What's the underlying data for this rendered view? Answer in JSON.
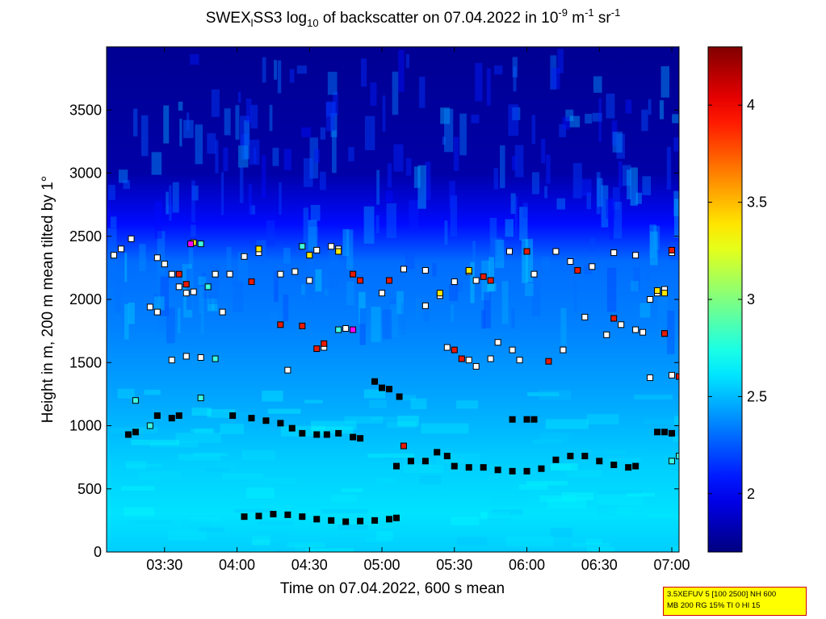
{
  "header": {
    "title_prefix": "SWEX",
    "title_sub1": "l",
    "title_mid": "SS3 log",
    "title_sub2": "10",
    "title_after": " of backscatter on 07.04.2022 in 10",
    "title_sup1": "-9",
    "title_units1": " m",
    "title_sup2": "-1",
    "title_units2": " sr",
    "title_sup3": "-1"
  },
  "info_box": {
    "line1": "3.5XEFUV 5 [100 2500] NH 600",
    "line2": "MB 200 RG 15% TI 0 HI 15"
  },
  "chart_data": {
    "type": "heatmap",
    "xlabel": "Time on 07.04.2022, 600 s mean",
    "ylabel": "Height in m, 200 m mean tilted by 1°",
    "x_range_hours": [
      3.1,
      7.05
    ],
    "ylim": [
      0,
      4000
    ],
    "x_ticks": [
      {
        "hour": 3.5,
        "label": "03:30"
      },
      {
        "hour": 4.0,
        "label": "04:00"
      },
      {
        "hour": 4.5,
        "label": "04:30"
      },
      {
        "hour": 5.0,
        "label": "05:00"
      },
      {
        "hour": 5.5,
        "label": "05:30"
      },
      {
        "hour": 6.0,
        "label": "06:00"
      },
      {
        "hour": 6.5,
        "label": "06:30"
      },
      {
        "hour": 7.0,
        "label": "07:00"
      }
    ],
    "y_ticks": [
      0,
      500,
      1000,
      1500,
      2000,
      2500,
      3000,
      3500
    ],
    "colorbar": {
      "range": [
        1.7,
        4.3
      ],
      "ticks": [
        2,
        2.5,
        3,
        3.5,
        4
      ],
      "colormap": "jet"
    },
    "background_profile": [
      {
        "height": 0,
        "value": 2.55
      },
      {
        "height": 300,
        "value": 2.6
      },
      {
        "height": 700,
        "value": 2.55
      },
      {
        "height": 1200,
        "value": 2.45
      },
      {
        "height": 1800,
        "value": 2.35
      },
      {
        "height": 2300,
        "value": 2.3
      },
      {
        "height": 2600,
        "value": 2.05
      },
      {
        "height": 3000,
        "value": 1.8
      },
      {
        "height": 4000,
        "value": 1.75
      }
    ],
    "layers": [
      {
        "name": "surface",
        "color": "#000000",
        "points": [
          [
            4.05,
            280
          ],
          [
            4.15,
            285
          ],
          [
            4.25,
            300
          ],
          [
            4.35,
            295
          ],
          [
            4.45,
            280
          ],
          [
            4.55,
            260
          ],
          [
            4.65,
            250
          ],
          [
            4.75,
            240
          ],
          [
            4.85,
            245
          ],
          [
            4.95,
            250
          ],
          [
            5.05,
            260
          ],
          [
            5.1,
            270
          ]
        ]
      },
      {
        "name": "lower",
        "color": "#000000",
        "points": [
          [
            5.1,
            680
          ],
          [
            5.2,
            720
          ],
          [
            5.3,
            720
          ],
          [
            5.38,
            790
          ],
          [
            5.45,
            760
          ],
          [
            5.5,
            680
          ],
          [
            5.6,
            670
          ],
          [
            5.7,
            670
          ],
          [
            5.8,
            650
          ],
          [
            5.9,
            640
          ],
          [
            6.0,
            640
          ],
          [
            6.1,
            660
          ],
          [
            6.2,
            730
          ],
          [
            6.3,
            760
          ],
          [
            6.4,
            760
          ],
          [
            6.5,
            720
          ],
          [
            6.6,
            690
          ],
          [
            6.7,
            670
          ],
          [
            6.75,
            680
          ]
        ]
      },
      {
        "name": "mid",
        "color": "#000000",
        "points": [
          [
            3.25,
            930
          ],
          [
            3.3,
            950
          ],
          [
            3.45,
            1080
          ],
          [
            3.55,
            1060
          ],
          [
            3.6,
            1080
          ],
          [
            3.97,
            1080
          ],
          [
            4.1,
            1060
          ],
          [
            4.2,
            1040
          ],
          [
            4.3,
            1020
          ],
          [
            4.38,
            980
          ],
          [
            4.45,
            940
          ],
          [
            4.55,
            930
          ],
          [
            4.62,
            930
          ],
          [
            4.7,
            940
          ],
          [
            4.8,
            910
          ],
          [
            4.85,
            900
          ]
        ]
      },
      {
        "name": "mid-east",
        "color": "#000000",
        "points": [
          [
            5.0,
            1300
          ],
          [
            4.95,
            1350
          ],
          [
            5.05,
            1290
          ],
          [
            5.12,
            1230
          ],
          [
            5.9,
            1050
          ],
          [
            6.0,
            1050
          ],
          [
            6.05,
            1050
          ],
          [
            6.9,
            950
          ],
          [
            6.95,
            950
          ],
          [
            7.0,
            940
          ]
        ]
      },
      {
        "name": "upper",
        "color": "#ffffff",
        "points": [
          [
            3.15,
            2350
          ],
          [
            3.2,
            2400
          ],
          [
            3.27,
            2480
          ],
          [
            3.45,
            2330
          ],
          [
            3.5,
            2280
          ],
          [
            3.55,
            2200
          ],
          [
            3.6,
            2100
          ],
          [
            3.65,
            2050
          ],
          [
            3.7,
            2060
          ],
          [
            3.85,
            2200
          ],
          [
            3.95,
            2200
          ],
          [
            4.05,
            2340
          ],
          [
            4.15,
            2370
          ],
          [
            4.3,
            2200
          ],
          [
            4.4,
            2220
          ],
          [
            4.5,
            2150
          ],
          [
            4.55,
            2390
          ],
          [
            4.65,
            2420
          ],
          [
            4.7,
            2400
          ],
          [
            5.0,
            2050
          ],
          [
            5.15,
            2240
          ],
          [
            5.3,
            2230
          ],
          [
            5.4,
            2030
          ],
          [
            5.5,
            2140
          ],
          [
            5.6,
            2220
          ],
          [
            5.65,
            2150
          ],
          [
            5.88,
            2380
          ],
          [
            6.05,
            2200
          ],
          [
            6.2,
            2380
          ],
          [
            6.3,
            2300
          ],
          [
            6.45,
            2260
          ],
          [
            6.6,
            2370
          ],
          [
            6.75,
            2350
          ],
          [
            6.85,
            2000
          ],
          [
            6.9,
            2050
          ],
          [
            6.95,
            2080
          ],
          [
            7.0,
            2370
          ]
        ]
      },
      {
        "name": "upper-mid",
        "color": "#ffffff",
        "points": [
          [
            3.4,
            1940
          ],
          [
            3.45,
            1900
          ],
          [
            3.55,
            1520
          ],
          [
            3.65,
            1550
          ],
          [
            3.75,
            1540
          ],
          [
            3.9,
            1900
          ],
          [
            4.35,
            1440
          ],
          [
            4.6,
            1620
          ],
          [
            4.75,
            1770
          ],
          [
            5.3,
            1950
          ],
          [
            5.45,
            1620
          ],
          [
            5.6,
            1520
          ],
          [
            5.65,
            1470
          ],
          [
            5.75,
            1530
          ],
          [
            5.8,
            1660
          ],
          [
            5.9,
            1600
          ],
          [
            5.95,
            1520
          ],
          [
            6.25,
            1600
          ],
          [
            6.4,
            1860
          ],
          [
            6.55,
            1720
          ],
          [
            6.65,
            1800
          ],
          [
            6.75,
            1760
          ],
          [
            6.8,
            1740
          ],
          [
            6.95,
            1730
          ],
          [
            7.0,
            1400
          ],
          [
            6.85,
            1380
          ]
        ]
      },
      {
        "name": "red-aerosol",
        "color": "#e81a00",
        "points": [
          [
            3.6,
            2200
          ],
          [
            3.65,
            2120
          ],
          [
            4.1,
            2140
          ],
          [
            4.3,
            1800
          ],
          [
            4.45,
            1790
          ],
          [
            4.55,
            1610
          ],
          [
            4.6,
            1650
          ],
          [
            4.8,
            2200
          ],
          [
            4.85,
            2150
          ],
          [
            5.05,
            2150
          ],
          [
            5.15,
            840
          ],
          [
            5.5,
            1600
          ],
          [
            5.55,
            1530
          ],
          [
            5.7,
            2180
          ],
          [
            5.75,
            2150
          ],
          [
            6.0,
            2380
          ],
          [
            6.15,
            1510
          ],
          [
            6.35,
            2230
          ],
          [
            6.6,
            1850
          ],
          [
            6.95,
            1730
          ],
          [
            7.0,
            2390
          ],
          [
            7.05,
            1390
          ]
        ]
      },
      {
        "name": "yellow-aerosol",
        "color": "#ffe800",
        "points": [
          [
            3.7,
            2450
          ],
          [
            4.15,
            2400
          ],
          [
            4.5,
            2350
          ],
          [
            4.7,
            2380
          ],
          [
            5.4,
            2050
          ],
          [
            5.6,
            2230
          ],
          [
            6.9,
            2070
          ],
          [
            6.95,
            2050
          ]
        ]
      },
      {
        "name": "magenta-aerosol",
        "color": "#ff00ff",
        "points": [
          [
            3.68,
            2440
          ],
          [
            4.8,
            1760
          ]
        ]
      },
      {
        "name": "cyan-aerosol",
        "color": "#40ffe0",
        "points": [
          [
            3.75,
            2440
          ],
          [
            3.8,
            2100
          ],
          [
            3.85,
            1530
          ],
          [
            3.75,
            1220
          ],
          [
            3.4,
            1000
          ],
          [
            3.3,
            1200
          ],
          [
            4.45,
            2420
          ],
          [
            4.7,
            1760
          ],
          [
            7.05,
            760
          ],
          [
            7.0,
            720
          ]
        ]
      }
    ]
  }
}
